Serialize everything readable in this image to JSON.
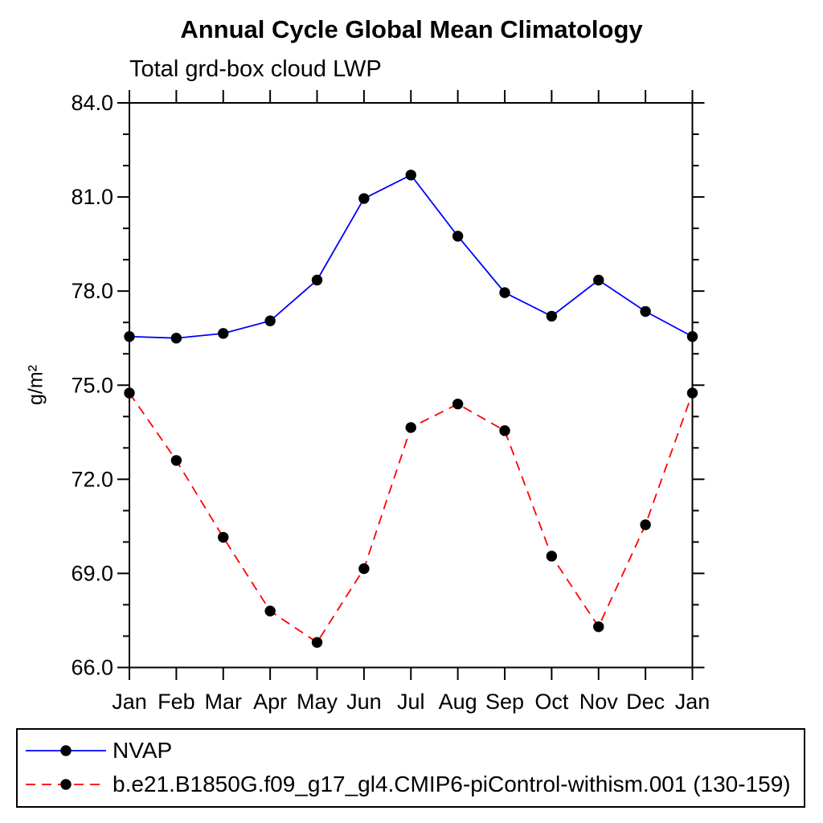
{
  "title": "Annual Cycle Global Mean Climatology",
  "subtitle": "Total grd-box cloud LWP",
  "y_axis": {
    "label": "g/m²",
    "major_tick_labels": [
      "66.0",
      "69.0",
      "72.0",
      "75.0",
      "78.0",
      "81.0",
      "84.0"
    ]
  },
  "x_axis": {
    "labels": [
      "Jan",
      "Feb",
      "Mar",
      "Apr",
      "May",
      "Jun",
      "Jul",
      "Aug",
      "Sep",
      "Oct",
      "Nov",
      "Dec",
      "Jan"
    ]
  },
  "colors": {
    "nvap_line": "#0000ff",
    "model_line": "#ff0000",
    "marker": "#000000",
    "axis": "#000000",
    "background": "#ffffff"
  },
  "chart_data": {
    "type": "line",
    "title": "Annual Cycle Global Mean Climatology",
    "subtitle": "Total grd-box cloud LWP",
    "xlabel": "",
    "ylabel": "g/m²",
    "ylim": [
      66.0,
      84.0
    ],
    "y_major_ticks": [
      66,
      69,
      72,
      75,
      78,
      81,
      84
    ],
    "y_minor_step": 1,
    "grid": false,
    "legend_position": "bottom-box",
    "categories": [
      "Jan",
      "Feb",
      "Mar",
      "Apr",
      "May",
      "Jun",
      "Jul",
      "Aug",
      "Sep",
      "Oct",
      "Nov",
      "Dec",
      "Jan"
    ],
    "series": [
      {
        "name": "NVAP",
        "color": "#0000ff",
        "line_style": "solid",
        "marker": "filled-circle",
        "marker_color": "#000000",
        "values": [
          76.55,
          76.5,
          76.65,
          77.05,
          78.35,
          80.95,
          81.7,
          79.75,
          77.95,
          77.2,
          78.35,
          77.35,
          76.55
        ]
      },
      {
        "name": "b.e21.B1850G.f09_g17_gl4.CMIP6-piControl-withism.001 (130-159)",
        "color": "#ff0000",
        "line_style": "dashed",
        "marker": "filled-circle",
        "marker_color": "#000000",
        "values": [
          74.75,
          72.6,
          70.15,
          67.8,
          66.8,
          69.15,
          73.65,
          74.4,
          73.55,
          69.55,
          67.3,
          70.55,
          74.75
        ]
      }
    ]
  }
}
